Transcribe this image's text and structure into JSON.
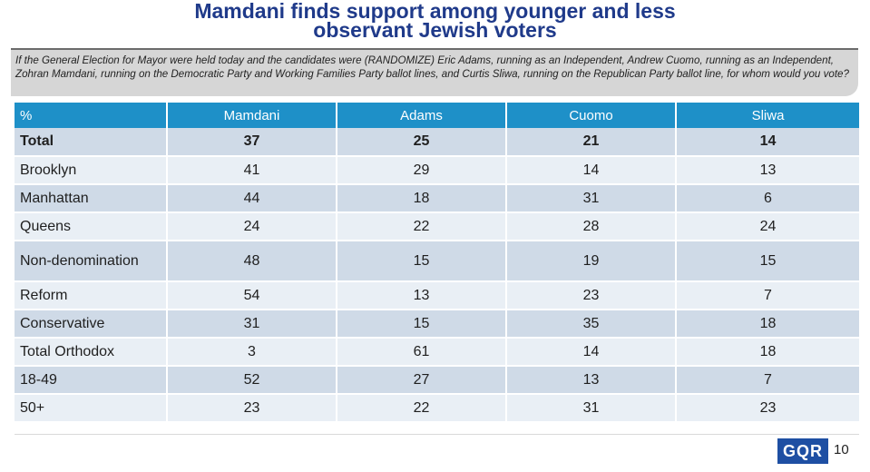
{
  "title": {
    "line1": "Mamdani finds support among younger and less",
    "line2": "observant Jewish voters"
  },
  "question": "If the General Election for Mayor were held today and the candidates were (RANDOMIZE) Eric Adams, running as an Independent, Andrew Cuomo, running as an Independent, Zohran Mamdani, running on the Democratic Party and Working Families Party ballot lines, and Curtis Sliwa, running on the Republican Party ballot line, for whom would you vote?",
  "colors": {
    "title": "#1f3a8a",
    "header": "#1e90c8",
    "row_dark": "#cfdae7",
    "row_light": "#e9eff5",
    "logo": "#1e4fa3"
  },
  "chart_data": {
    "type": "table",
    "columns": [
      "%",
      "Mamdani",
      "Adams",
      "Cuomo",
      "Sliwa"
    ],
    "rows": [
      {
        "label": "Total",
        "values": [
          37,
          25,
          21,
          14
        ]
      },
      {
        "label": "Brooklyn",
        "values": [
          41,
          29,
          14,
          13
        ]
      },
      {
        "label": "Manhattan",
        "values": [
          44,
          18,
          31,
          6
        ]
      },
      {
        "label": "Queens",
        "values": [
          24,
          22,
          28,
          24
        ]
      },
      {
        "label": "Non-denomination",
        "values": [
          48,
          15,
          19,
          15
        ]
      },
      {
        "label": "Reform",
        "values": [
          54,
          13,
          23,
          7
        ]
      },
      {
        "label": "Conservative",
        "values": [
          31,
          15,
          35,
          18
        ]
      },
      {
        "label": "Total Orthodox",
        "values": [
          3,
          61,
          14,
          18
        ]
      },
      {
        "label": "18-49",
        "values": [
          52,
          27,
          13,
          7
        ]
      },
      {
        "label": "50+",
        "values": [
          23,
          22,
          31,
          23
        ]
      }
    ]
  },
  "footer": {
    "logo_text": "GQR",
    "page_number": "10"
  }
}
